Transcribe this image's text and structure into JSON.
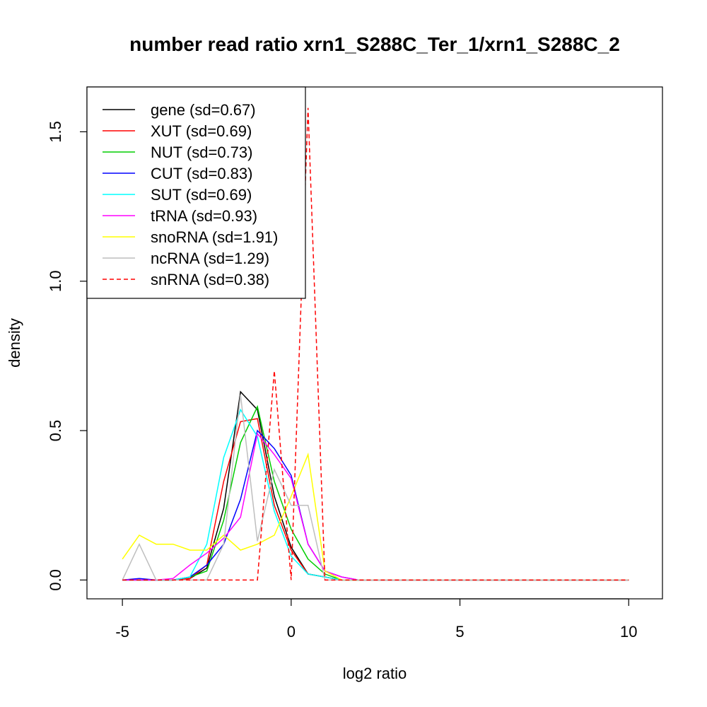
{
  "chart_data": {
    "type": "line",
    "title": "number read ratio xrn1_S288C_Ter_1/xrn1_S288C_2",
    "xlabel": "log2 ratio",
    "ylabel": "density",
    "xlim": [
      -6.05,
      11.0
    ],
    "ylim": [
      -0.063,
      1.65
    ],
    "x_ticks": [
      -5,
      0,
      5,
      10
    ],
    "x_tick_labels": [
      "-5",
      "0",
      "5",
      "10"
    ],
    "y_ticks": [
      0.0,
      0.5,
      1.0,
      1.5
    ],
    "y_tick_labels": [
      "0.0",
      "0.5",
      "1.0",
      "1.5"
    ],
    "grid": false,
    "legend_position": "top-left",
    "series": [
      {
        "name": "gene (sd=0.67)",
        "color": "#000000",
        "dash": "solid",
        "x": [
          -5,
          -4.5,
          -4,
          -3.5,
          -3,
          -2.5,
          -2,
          -1.5,
          -1,
          -0.5,
          0,
          0.5,
          1,
          1.5,
          2,
          3,
          10
        ],
        "y": [
          0,
          0,
          0,
          0,
          0.005,
          0.04,
          0.24,
          0.63,
          0.57,
          0.28,
          0.11,
          0.02,
          0.01,
          0,
          0,
          0,
          0
        ]
      },
      {
        "name": "XUT (sd=0.69)",
        "color": "#ff0000",
        "dash": "solid",
        "x": [
          -5,
          -4.5,
          -4,
          -3.5,
          -3,
          -2.5,
          -2,
          -1.5,
          -1,
          -0.5,
          0,
          0.5,
          1,
          1.5,
          2,
          3,
          10
        ],
        "y": [
          0,
          0,
          0,
          0,
          0.005,
          0.05,
          0.33,
          0.53,
          0.54,
          0.25,
          0.1,
          0.02,
          0.01,
          0,
          0,
          0,
          0
        ]
      },
      {
        "name": "NUT (sd=0.73)",
        "color": "#00cd00",
        "dash": "solid",
        "x": [
          -5,
          -4.5,
          -4,
          -3.5,
          -3,
          -2.5,
          -2,
          -1.5,
          -1,
          -0.5,
          0,
          0.5,
          1,
          1.5,
          2,
          3,
          10
        ],
        "y": [
          0,
          0,
          0,
          0,
          0.01,
          0.03,
          0.2,
          0.46,
          0.58,
          0.33,
          0.17,
          0.07,
          0.02,
          0,
          0,
          0,
          0
        ]
      },
      {
        "name": "CUT (sd=0.83)",
        "color": "#0000ff",
        "dash": "solid",
        "x": [
          -5,
          -4.5,
          -4,
          -3.5,
          -3,
          -2.5,
          -2,
          -1.5,
          -1,
          -0.5,
          0,
          0.5,
          1,
          1.5,
          2,
          3,
          10
        ],
        "y": [
          0,
          0.005,
          0,
          0,
          0.01,
          0.05,
          0.12,
          0.27,
          0.5,
          0.44,
          0.35,
          0.12,
          0.03,
          0.01,
          0,
          0,
          0
        ]
      },
      {
        "name": "SUT (sd=0.69)",
        "color": "#00ffff",
        "dash": "solid",
        "x": [
          -5,
          -4.5,
          -4,
          -3.5,
          -3,
          -2.5,
          -2,
          -1.5,
          -1,
          -0.5,
          0,
          0.5,
          1,
          1.5,
          2,
          3,
          10
        ],
        "y": [
          0,
          0,
          0,
          0,
          0.01,
          0.12,
          0.41,
          0.57,
          0.48,
          0.23,
          0.08,
          0.02,
          0.01,
          0,
          0,
          0,
          0
        ]
      },
      {
        "name": "tRNA (sd=0.93)",
        "color": "#ff00ff",
        "dash": "solid",
        "x": [
          -5,
          -4.5,
          -4,
          -3.5,
          -3,
          -2.5,
          -2,
          -1.5,
          -1,
          -0.5,
          0,
          0.5,
          1,
          1.5,
          2,
          3,
          10
        ],
        "y": [
          0,
          0,
          0,
          0.005,
          0.05,
          0.09,
          0.14,
          0.21,
          0.49,
          0.42,
          0.34,
          0.12,
          0.03,
          0.01,
          0,
          0,
          0
        ]
      },
      {
        "name": "snoRNA (sd=1.91)",
        "color": "#ffff00",
        "dash": "solid",
        "x": [
          -5,
          -4.5,
          -4,
          -3.5,
          -3,
          -2.5,
          -2,
          -1.5,
          -1,
          -0.5,
          0,
          0.5,
          1,
          1.5,
          2,
          3,
          10
        ],
        "y": [
          0.07,
          0.15,
          0.12,
          0.12,
          0.1,
          0.1,
          0.15,
          0.1,
          0.12,
          0.15,
          0.28,
          0.42,
          0.03,
          0,
          0,
          0,
          0
        ]
      },
      {
        "name": "ncRNA (sd=1.29)",
        "color": "#bebebe",
        "dash": "solid",
        "x": [
          -5,
          -4.5,
          -4,
          -3.5,
          -3,
          -2.5,
          -2,
          -1.5,
          -1,
          -0.5,
          0,
          0.5,
          1,
          1.5,
          2,
          3,
          10
        ],
        "y": [
          0,
          0.12,
          0,
          0,
          0,
          0,
          0.12,
          0.62,
          0.13,
          0.37,
          0.25,
          0.25,
          0,
          0,
          0,
          0,
          0
        ]
      },
      {
        "name": "snRNA (sd=0.38)",
        "color": "#ff0000",
        "dash": "dashed",
        "x": [
          -5,
          -4.5,
          -4,
          -3.5,
          -3,
          -2.5,
          -2,
          -1.5,
          -1,
          -0.5,
          0,
          0.5,
          1,
          1.5,
          2,
          3,
          10
        ],
        "y": [
          0,
          0,
          0,
          0,
          0,
          0,
          0,
          0,
          0,
          0.7,
          0,
          1.58,
          0,
          0,
          0,
          0,
          0
        ]
      }
    ]
  }
}
